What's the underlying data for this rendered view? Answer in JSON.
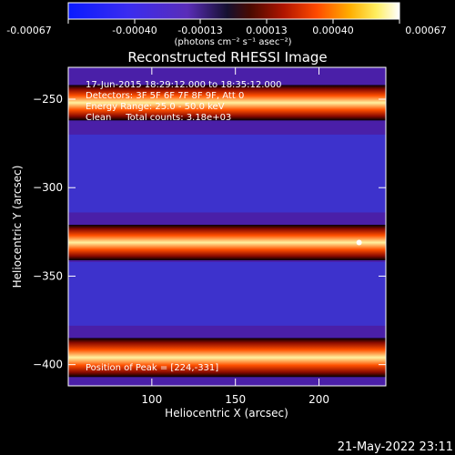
{
  "chart_data": {
    "type": "heatmap",
    "title": "Reconstructed RHESSI Image",
    "xlabel": "Heliocentric X (arcsec)",
    "ylabel": "Heliocentric Y (arcsec)",
    "xlim": [
      50,
      240
    ],
    "ylim": [
      -412,
      -232
    ],
    "x_ticks": [
      100,
      150,
      200
    ],
    "y_ticks": [
      -250,
      -300,
      -350,
      -400
    ],
    "colorbar": {
      "label": "(photons cm⁻² s⁻¹ asec⁻²)",
      "range": [
        -0.00067,
        0.00067
      ],
      "ticks": [
        "-0.00067",
        "-0.00040",
        "-0.00013",
        "0.00013",
        "0.00040",
        "0.00067"
      ]
    },
    "info_lines": [
      "17-Jun-2015 18:29:12.000 to 18:35:12.000",
      "Detectors: 3F 5F 6F 7F 8F 9F, Att 0",
      "Energy Range: 25.0 - 50.0 keV",
      "Clean     Total counts: 3.18e+03"
    ],
    "peak_text": "Position of Peak = [224,-331]",
    "peak_position": [
      224,
      -331
    ],
    "bands": [
      {
        "kind": "bright",
        "y_center": -252,
        "width": 10,
        "x_from": 50,
        "x_to": 240
      },
      {
        "kind": "dim",
        "y_center": -292,
        "width": 22,
        "x_from": 50,
        "x_to": 240
      },
      {
        "kind": "bright",
        "y_center": -331,
        "width": 10,
        "x_from": 50,
        "x_to": 240
      },
      {
        "kind": "dim",
        "y_center": -360,
        "width": 18,
        "x_from": 50,
        "x_to": 240
      },
      {
        "kind": "bright",
        "y_center": -396,
        "width": 11,
        "x_from": 50,
        "x_to": 240
      }
    ]
  },
  "footer": {
    "timestamp": "21-May-2022 23:11"
  }
}
